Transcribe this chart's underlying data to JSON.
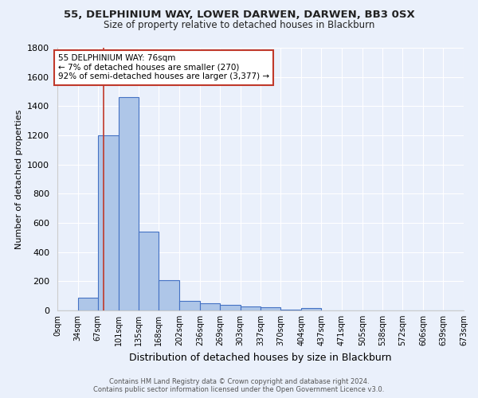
{
  "title": "55, DELPHINIUM WAY, LOWER DARWEN, DARWEN, BB3 0SX",
  "subtitle": "Size of property relative to detached houses in Blackburn",
  "xlabel": "Distribution of detached houses by size in Blackburn",
  "ylabel": "Number of detached properties",
  "footnote1": "Contains HM Land Registry data © Crown copyright and database right 2024.",
  "footnote2": "Contains public sector information licensed under the Open Government Licence v3.0.",
  "bin_labels": [
    "0sqm",
    "34sqm",
    "67sqm",
    "101sqm",
    "135sqm",
    "168sqm",
    "202sqm",
    "236sqm",
    "269sqm",
    "303sqm",
    "337sqm",
    "370sqm",
    "404sqm",
    "437sqm",
    "471sqm",
    "505sqm",
    "538sqm",
    "572sqm",
    "606sqm",
    "639sqm",
    "673sqm"
  ],
  "bar_values": [
    0,
    90,
    1200,
    1460,
    540,
    205,
    65,
    50,
    40,
    28,
    22,
    5,
    15,
    0,
    0,
    0,
    0,
    0,
    0,
    0
  ],
  "bin_edges": [
    0,
    34,
    67,
    101,
    135,
    168,
    202,
    236,
    269,
    303,
    337,
    370,
    404,
    437,
    471,
    505,
    538,
    572,
    606,
    639,
    673
  ],
  "bar_color": "#aec6e8",
  "bar_edge_color": "#4472c4",
  "bg_color": "#eaf0fb",
  "grid_color": "#ffffff",
  "property_value": 76,
  "vline_color": "#c0392b",
  "annotation_line1": "55 DELPHINIUM WAY: 76sqm",
  "annotation_line2": "← 7% of detached houses are smaller (270)",
  "annotation_line3": "92% of semi-detached houses are larger (3,377) →",
  "annotation_box_color": "#ffffff",
  "annotation_box_edge": "#c0392b",
  "ylim": [
    0,
    1800
  ],
  "yticks": [
    0,
    200,
    400,
    600,
    800,
    1000,
    1200,
    1400,
    1600,
    1800
  ]
}
